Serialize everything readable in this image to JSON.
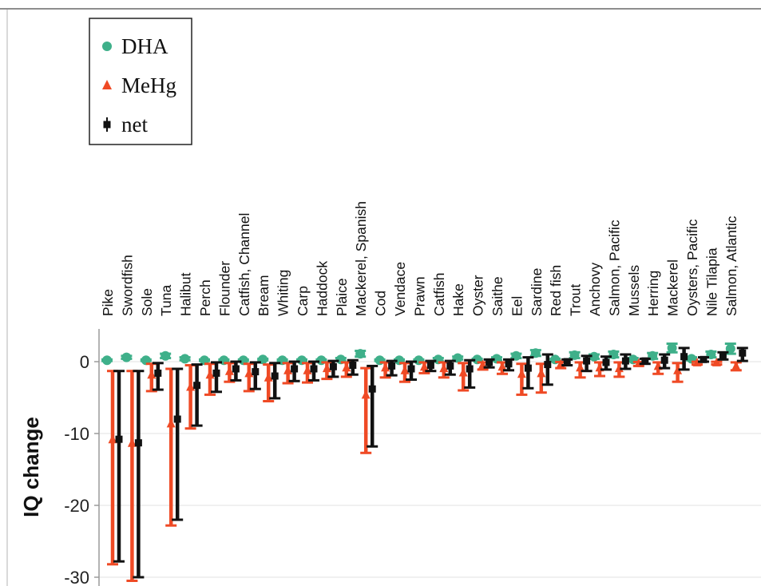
{
  "chart_data": {
    "type": "scatter",
    "ylabel": "IQ change",
    "ylim": [
      -30,
      5
    ],
    "yticks": [
      0,
      -10,
      -20,
      -30
    ],
    "grid": "horizontal",
    "legend_position": "top-left",
    "categories": [
      "Pike",
      "Swordfish",
      "Sole",
      "Tuna",
      "Halibut",
      "Perch",
      "Flounder",
      "Catfish, Channel",
      "Bream",
      "Whiting",
      "Carp",
      "Haddock",
      "Plaice",
      "Mackerel, Spanish",
      "Cod",
      "Vendace",
      "Prawn",
      "Catfish",
      "Hake",
      "Oyster",
      "Saithe",
      "Eel",
      "Sardine",
      "Red fish",
      "Trout",
      "Anchovy",
      "Salmon, Pacific",
      "Mussels",
      "Herring",
      "Mackerel",
      "Oysters, Pacific",
      "Nile Tilapia",
      "Salmon, Atlantic"
    ],
    "series": [
      {
        "name": "DHA",
        "color": "#3fb08a",
        "marker": "circle",
        "values": [
          0.2,
          0.6,
          0.2,
          0.8,
          0.4,
          0.2,
          0.2,
          0.2,
          0.3,
          0.2,
          0.2,
          0.2,
          0.3,
          1.1,
          0.2,
          0.2,
          0.2,
          0.3,
          0.5,
          0.3,
          0.4,
          0.8,
          1.2,
          0.3,
          0.9,
          0.7,
          1.0,
          0.3,
          0.8,
          1.9,
          0.4,
          1.0,
          1.8
        ],
        "err_low": [
          0.1,
          0.4,
          0.1,
          0.5,
          0.2,
          0.1,
          0.1,
          0.1,
          0.2,
          0.1,
          0.1,
          0.1,
          0.1,
          0.7,
          0.1,
          0.1,
          0.1,
          0.1,
          0.3,
          0.2,
          0.2,
          0.5,
          0.8,
          0.2,
          0.5,
          0.4,
          0.6,
          0.1,
          0.4,
          1.3,
          0.2,
          0.6,
          1.1
        ],
        "err_high": [
          0.3,
          0.8,
          0.3,
          1.1,
          0.6,
          0.3,
          0.3,
          0.3,
          0.4,
          0.3,
          0.3,
          0.3,
          0.5,
          1.5,
          0.3,
          0.3,
          0.3,
          0.5,
          0.7,
          0.4,
          0.6,
          1.1,
          1.6,
          0.4,
          1.3,
          1.0,
          1.4,
          0.5,
          1.2,
          2.5,
          0.6,
          1.4,
          2.5
        ]
      },
      {
        "name": "MeHg",
        "color": "#ef4a25",
        "marker": "triangle",
        "values": [
          -10.8,
          -11.3,
          -1.8,
          -8.6,
          -3.5,
          -1.8,
          -1.3,
          -1.6,
          -2.2,
          -1.2,
          -1.2,
          -0.9,
          -0.8,
          -4.6,
          -0.8,
          -1.2,
          -0.7,
          -0.9,
          -1.5,
          -0.4,
          -0.7,
          -1.7,
          -1.6,
          -0.3,
          -0.8,
          -0.8,
          -0.9,
          -0.2,
          -0.6,
          -1.2,
          -0.1,
          -0.1,
          -0.6
        ],
        "err_low": [
          -28.2,
          -30.5,
          -4.1,
          -22.8,
          -9.3,
          -4.6,
          -2.8,
          -4.1,
          -5.5,
          -3.0,
          -2.9,
          -2.4,
          -2.1,
          -12.7,
          -2.2,
          -2.8,
          -1.6,
          -2.2,
          -4.0,
          -1.1,
          -1.7,
          -4.6,
          -4.3,
          -0.9,
          -2.2,
          -2.0,
          -2.1,
          -0.6,
          -1.7,
          -2.8,
          -0.4,
          -0.4,
          -1.2
        ],
        "err_high": [
          -1.3,
          -1.3,
          -0.3,
          -1.0,
          -0.5,
          -0.3,
          -0.2,
          -0.3,
          -0.4,
          -0.2,
          -0.2,
          -0.1,
          -0.1,
          -0.9,
          -0.1,
          -0.2,
          -0.1,
          -0.1,
          -0.2,
          -0.1,
          -0.1,
          -0.3,
          -0.3,
          -0.05,
          -0.1,
          -0.1,
          -0.1,
          -0.05,
          -0.1,
          -0.2,
          -0.02,
          -0.02,
          -0.1
        ]
      },
      {
        "name": "net",
        "color": "#111111",
        "marker": "square",
        "values": [
          -10.8,
          -11.3,
          -1.6,
          -8.0,
          -3.3,
          -1.6,
          -1.0,
          -1.4,
          -2.0,
          -1.0,
          -1.0,
          -0.7,
          -0.5,
          -3.8,
          -0.6,
          -1.0,
          -0.5,
          -0.6,
          -1.0,
          -0.1,
          -0.3,
          -0.9,
          -0.4,
          0.0,
          0.1,
          -0.1,
          0.1,
          0.1,
          0.2,
          0.7,
          0.3,
          0.9,
          1.2
        ],
        "err_low": [
          -27.8,
          -30.0,
          -3.9,
          -22.0,
          -8.9,
          -4.2,
          -2.6,
          -3.8,
          -5.1,
          -2.7,
          -2.6,
          -2.1,
          -1.8,
          -11.8,
          -1.9,
          -2.5,
          -1.3,
          -1.8,
          -3.6,
          -0.8,
          -1.2,
          -3.7,
          -3.2,
          -0.5,
          -1.3,
          -1.1,
          -1.0,
          -0.3,
          -0.9,
          -1.1,
          0.0,
          0.3,
          0.1
        ],
        "err_high": [
          -1.3,
          -1.3,
          -0.2,
          -1.0,
          -0.4,
          -0.1,
          0.0,
          -0.1,
          -0.2,
          0.0,
          0.0,
          0.1,
          0.2,
          -0.6,
          0.1,
          0.0,
          0.1,
          0.1,
          0.2,
          0.3,
          0.3,
          0.6,
          1.0,
          0.3,
          0.8,
          0.7,
          1.0,
          0.4,
          1.0,
          1.9,
          0.6,
          1.3,
          1.9
        ]
      }
    ]
  }
}
